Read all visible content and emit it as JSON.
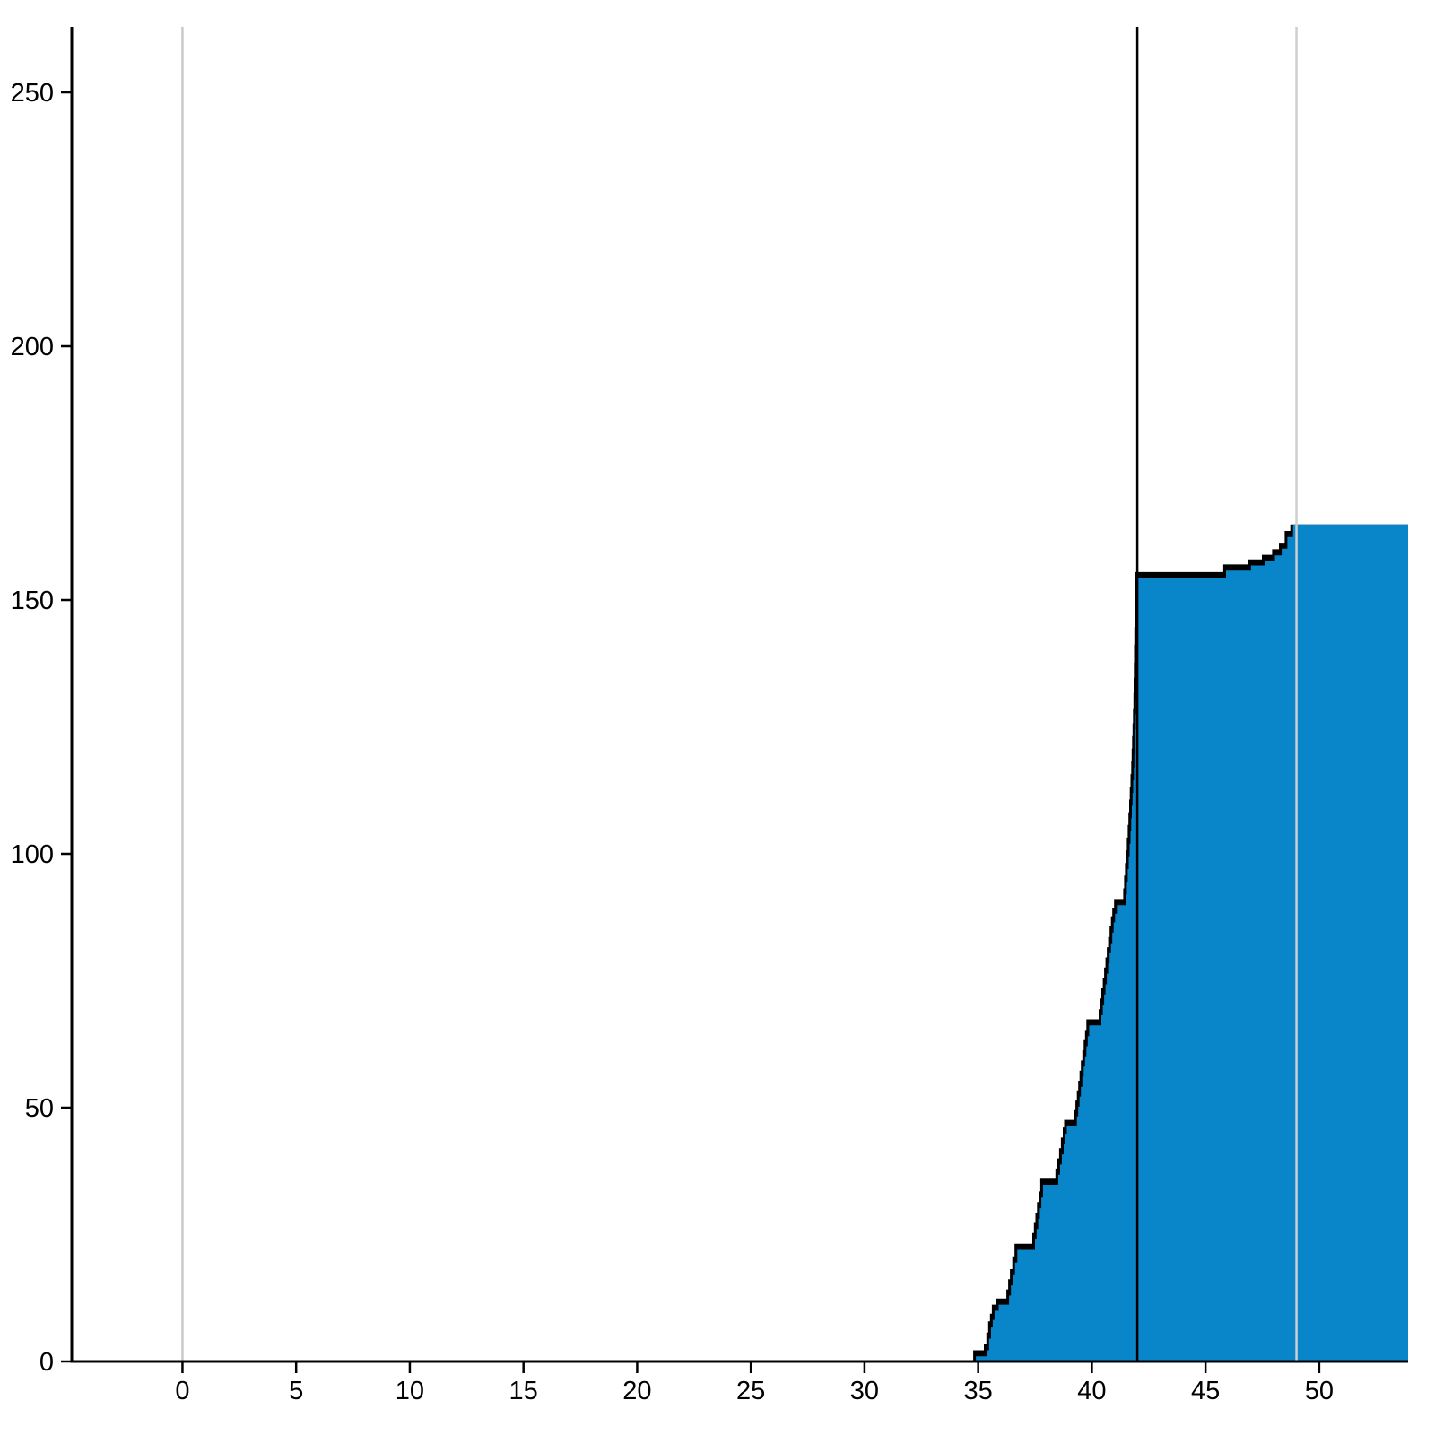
{
  "chart_data": {
    "type": "area",
    "style": "step",
    "grid": false,
    "legend": "none",
    "xlabel": "",
    "ylabel": "",
    "x_tick_labels": [
      "0",
      "5",
      "10",
      "15",
      "20",
      "25",
      "30",
      "35",
      "40",
      "45",
      "50"
    ],
    "x_ticks": [
      0,
      5,
      10,
      15,
      20,
      25,
      30,
      35,
      40,
      45,
      50
    ],
    "y_tick_labels": [
      "0",
      "50",
      "100",
      "150",
      "200",
      "250"
    ],
    "y_ticks": [
      0,
      50,
      100,
      150,
      200,
      250
    ],
    "xlim": [
      -4.87,
      53.91
    ],
    "ylim": [
      0,
      262.9
    ],
    "x_end": 53.91,
    "axis_color": "#000000",
    "background_color": "#ffffff",
    "vlines": [
      {
        "x": 0,
        "color": "#c9c9c9",
        "width": 2.5
      },
      {
        "x": 42,
        "color": "#000000",
        "width": 2.5
      },
      {
        "x": 49,
        "color": "#cfcfcf",
        "width": 2.5
      }
    ],
    "series": [
      {
        "name": "black-step-area",
        "color": "#000000",
        "points": [
          [
            34.78,
            2.2
          ],
          [
            35.25,
            3.4
          ],
          [
            35.36,
            5.7
          ],
          [
            35.44,
            7.9
          ],
          [
            35.52,
            9.4
          ],
          [
            35.6,
            11.2
          ],
          [
            35.78,
            12.4
          ],
          [
            36.24,
            14.2
          ],
          [
            36.32,
            16.2
          ],
          [
            36.4,
            18.2
          ],
          [
            36.5,
            20.7
          ],
          [
            36.6,
            23.2
          ],
          [
            37.38,
            25.3
          ],
          [
            37.45,
            27.3
          ],
          [
            37.52,
            29.3
          ],
          [
            37.59,
            31.4
          ],
          [
            37.66,
            33.5
          ],
          [
            37.73,
            36.0
          ],
          [
            38.4,
            38.0
          ],
          [
            38.48,
            40.0
          ],
          [
            38.56,
            42.0
          ],
          [
            38.64,
            44.1
          ],
          [
            38.72,
            46.1
          ],
          [
            38.78,
            47.6
          ],
          [
            39.22,
            49.5
          ],
          [
            39.28,
            51.4
          ],
          [
            39.34,
            53.4
          ],
          [
            39.4,
            55.3
          ],
          [
            39.46,
            57.3
          ],
          [
            39.52,
            59.3
          ],
          [
            39.58,
            61.3
          ],
          [
            39.64,
            63.3
          ],
          [
            39.7,
            65.3
          ],
          [
            39.76,
            67.4
          ],
          [
            40.3,
            69.4
          ],
          [
            40.36,
            71.5
          ],
          [
            40.42,
            73.5
          ],
          [
            40.48,
            75.5
          ],
          [
            40.54,
            77.6
          ],
          [
            40.6,
            79.6
          ],
          [
            40.66,
            81.6
          ],
          [
            40.72,
            83.6
          ],
          [
            40.78,
            85.7
          ],
          [
            40.84,
            87.7
          ],
          [
            40.9,
            89.4
          ],
          [
            40.98,
            91.1
          ],
          [
            41.38,
            93.2
          ],
          [
            41.42,
            95.7
          ],
          [
            41.46,
            98.2
          ],
          [
            41.5,
            100.7
          ],
          [
            41.54,
            103.2
          ],
          [
            41.58,
            105.7
          ],
          [
            41.61,
            108.2
          ],
          [
            41.64,
            110.7
          ],
          [
            41.67,
            113.2
          ],
          [
            41.7,
            115.7
          ],
          [
            41.73,
            118.2
          ],
          [
            41.75,
            120.7
          ],
          [
            41.77,
            123.2
          ],
          [
            41.79,
            125.7
          ],
          [
            41.81,
            128.7
          ],
          [
            41.83,
            131.7
          ],
          [
            41.84,
            134.7
          ],
          [
            41.85,
            137.7
          ],
          [
            41.86,
            141.2
          ],
          [
            41.87,
            144.7
          ],
          [
            41.88,
            148.2
          ],
          [
            41.89,
            152.2
          ],
          [
            41.91,
            155.5
          ],
          [
            45.78,
            157.0
          ],
          [
            46.88,
            158.0
          ],
          [
            47.48,
            158.9
          ],
          [
            47.93,
            160.0
          ],
          [
            48.23,
            161.3
          ],
          [
            48.48,
            163.6
          ],
          [
            48.73,
            164.9
          ]
        ]
      },
      {
        "name": "blue-step-area",
        "color": "#0886c9",
        "points": [
          [
            34.9,
            1.0
          ],
          [
            35.37,
            2.2
          ],
          [
            35.48,
            4.5
          ],
          [
            35.56,
            6.7
          ],
          [
            35.64,
            8.2
          ],
          [
            35.72,
            10.0
          ],
          [
            35.9,
            11.2
          ],
          [
            36.36,
            13.0
          ],
          [
            36.44,
            15.0
          ],
          [
            36.52,
            17.0
          ],
          [
            36.62,
            19.5
          ],
          [
            36.72,
            22.0
          ],
          [
            37.5,
            24.1
          ],
          [
            37.57,
            26.1
          ],
          [
            37.64,
            28.1
          ],
          [
            37.71,
            30.2
          ],
          [
            37.78,
            32.3
          ],
          [
            37.85,
            34.8
          ],
          [
            38.52,
            36.8
          ],
          [
            38.6,
            38.8
          ],
          [
            38.68,
            40.8
          ],
          [
            38.76,
            42.9
          ],
          [
            38.84,
            44.9
          ],
          [
            38.9,
            46.4
          ],
          [
            39.34,
            48.3
          ],
          [
            39.4,
            50.2
          ],
          [
            39.46,
            52.2
          ],
          [
            39.52,
            54.1
          ],
          [
            39.58,
            56.1
          ],
          [
            39.64,
            58.1
          ],
          [
            39.7,
            60.1
          ],
          [
            39.76,
            62.1
          ],
          [
            39.82,
            64.1
          ],
          [
            39.88,
            66.2
          ],
          [
            40.42,
            68.2
          ],
          [
            40.48,
            70.3
          ],
          [
            40.54,
            72.3
          ],
          [
            40.6,
            74.3
          ],
          [
            40.66,
            76.4
          ],
          [
            40.72,
            78.4
          ],
          [
            40.78,
            80.4
          ],
          [
            40.84,
            82.4
          ],
          [
            40.9,
            84.5
          ],
          [
            40.96,
            86.5
          ],
          [
            41.02,
            88.2
          ],
          [
            41.1,
            89.9
          ],
          [
            41.5,
            92.0
          ],
          [
            41.54,
            94.5
          ],
          [
            41.58,
            97.0
          ],
          [
            41.62,
            99.5
          ],
          [
            41.66,
            102.0
          ],
          [
            41.7,
            104.5
          ],
          [
            41.73,
            107.0
          ],
          [
            41.76,
            109.5
          ],
          [
            41.79,
            112.0
          ],
          [
            41.82,
            114.5
          ],
          [
            41.85,
            117.0
          ],
          [
            41.87,
            119.5
          ],
          [
            41.89,
            122.0
          ],
          [
            41.91,
            124.5
          ],
          [
            41.93,
            127.5
          ],
          [
            41.95,
            130.5
          ],
          [
            41.96,
            133.5
          ],
          [
            41.97,
            136.5
          ],
          [
            41.98,
            140.0
          ],
          [
            41.99,
            143.5
          ],
          [
            42.0,
            147.0
          ],
          [
            42.01,
            151.0
          ],
          [
            42.03,
            154.3
          ],
          [
            45.9,
            155.8
          ],
          [
            47.0,
            156.8
          ],
          [
            47.6,
            157.7
          ],
          [
            48.05,
            158.8
          ],
          [
            48.35,
            160.1
          ],
          [
            48.6,
            162.4
          ],
          [
            48.85,
            164.9
          ]
        ]
      }
    ]
  }
}
